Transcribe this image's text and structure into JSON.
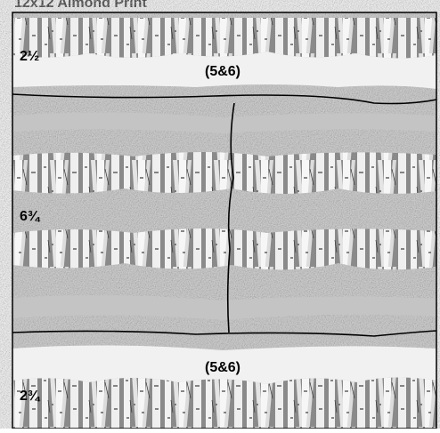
{
  "title": "12x12 Almond Print",
  "sections": [
    {
      "measure": "2½",
      "label": "(5&6)"
    },
    {
      "measure": "6¾"
    },
    {
      "measure": "2¾",
      "label": "(5&6)"
    }
  ]
}
